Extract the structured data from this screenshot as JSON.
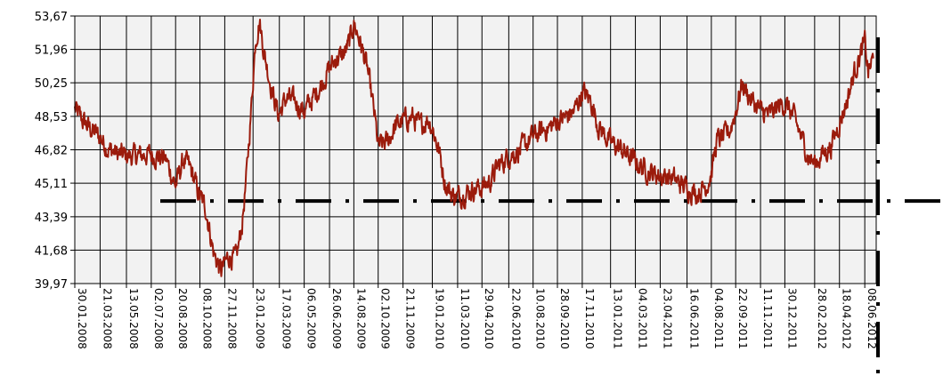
{
  "chart_data": {
    "type": "line",
    "title": "",
    "xlabel": "",
    "ylabel": "",
    "x_range": [
      "2008-01-30",
      "2012-07-01"
    ],
    "ylim": [
      39.97,
      53.67
    ],
    "yticks": [
      "53,67",
      "51,96",
      "50,25",
      "48,53",
      "46,82",
      "45,11",
      "43,39",
      "41,68",
      "39,97"
    ],
    "xticks": [
      "30.01.2008",
      "21.03.2008",
      "13.05.2008",
      "02.07.2008",
      "20.08.2008",
      "08.10.2008",
      "27.11.2008",
      "23.01.2009",
      "17.03.2009",
      "06.05.2009",
      "26.06.2009",
      "14.08.2009",
      "02.10.2009",
      "21.11.2009",
      "19.01.2010",
      "11.03.2010",
      "29.04.2010",
      "22.06.2010",
      "10.08.2010",
      "28.09.2010",
      "17.11.2010",
      "13.01.2011",
      "04.03.2011",
      "23.04.2011",
      "16.06.2011",
      "04.08.2011",
      "22.09.2011",
      "11.11.2011",
      "30.12.2011",
      "28.02.2012",
      "18.04.2012",
      "08.06.2012"
    ],
    "grid": true,
    "reference_line": {
      "value": 44.2,
      "style": "dash-dot"
    },
    "series": [
      {
        "color": "#9b1b0c",
        "points": [
          [
            "2008-01-30",
            48.9
          ],
          [
            "2008-02-15",
            48.3
          ],
          [
            "2008-03-01",
            47.9
          ],
          [
            "2008-03-20",
            47.5
          ],
          [
            "2008-04-05",
            46.9
          ],
          [
            "2008-04-25",
            46.6
          ],
          [
            "2008-05-15",
            46.5
          ],
          [
            "2008-06-05",
            46.5
          ],
          [
            "2008-06-25",
            46.6
          ],
          [
            "2008-07-15",
            46.5
          ],
          [
            "2008-08-01",
            46.3
          ],
          [
            "2008-08-20",
            45.0
          ],
          [
            "2008-09-05",
            46.3
          ],
          [
            "2008-09-20",
            45.8
          ],
          [
            "2008-10-05",
            44.6
          ],
          [
            "2008-10-20",
            43.8
          ],
          [
            "2008-11-05",
            41.5
          ],
          [
            "2008-11-20",
            40.6
          ],
          [
            "2008-12-05",
            41.4
          ],
          [
            "2008-12-20",
            41.2
          ],
          [
            "2009-01-01",
            43.0
          ],
          [
            "2009-01-10",
            45.5
          ],
          [
            "2009-01-20",
            49.2
          ],
          [
            "2009-01-28",
            52.5
          ],
          [
            "2009-02-05",
            53.4
          ],
          [
            "2009-02-15",
            51.7
          ],
          [
            "2009-03-01",
            50.0
          ],
          [
            "2009-03-15",
            48.6
          ],
          [
            "2009-04-01",
            49.5
          ],
          [
            "2009-04-20",
            49.2
          ],
          [
            "2009-05-06",
            48.8
          ],
          [
            "2009-05-25",
            49.5
          ],
          [
            "2009-06-10",
            50.2
          ],
          [
            "2009-06-26",
            51.0
          ],
          [
            "2009-07-10",
            51.5
          ],
          [
            "2009-07-25",
            51.7
          ],
          [
            "2009-08-05",
            52.3
          ],
          [
            "2009-08-14",
            53.3
          ],
          [
            "2009-08-25",
            52.5
          ],
          [
            "2009-09-10",
            51.0
          ],
          [
            "2009-09-25",
            48.5
          ],
          [
            "2009-10-02",
            47.0
          ],
          [
            "2009-10-20",
            47.2
          ],
          [
            "2009-11-05",
            48.0
          ],
          [
            "2009-11-21",
            48.3
          ],
          [
            "2009-12-10",
            48.5
          ],
          [
            "2009-12-25",
            48.0
          ],
          [
            "2010-01-10",
            48.4
          ],
          [
            "2010-01-19",
            48.0
          ],
          [
            "2010-02-01",
            46.8
          ],
          [
            "2010-02-15",
            45.0
          ],
          [
            "2010-03-01",
            44.5
          ],
          [
            "2010-03-11",
            44.4
          ],
          [
            "2010-03-25",
            44.6
          ],
          [
            "2010-04-10",
            44.8
          ],
          [
            "2010-04-29",
            44.9
          ],
          [
            "2010-05-15",
            45.2
          ],
          [
            "2010-06-01",
            46.0
          ],
          [
            "2010-06-22",
            46.5
          ],
          [
            "2010-07-15",
            46.8
          ],
          [
            "2010-08-10",
            47.5
          ],
          [
            "2010-08-30",
            47.8
          ],
          [
            "2010-09-15",
            48.0
          ],
          [
            "2010-09-28",
            48.3
          ],
          [
            "2010-10-15",
            48.5
          ],
          [
            "2010-11-01",
            48.8
          ],
          [
            "2010-11-17",
            49.8
          ],
          [
            "2010-12-05",
            49.3
          ],
          [
            "2010-12-20",
            48.0
          ],
          [
            "2011-01-13",
            47.2
          ],
          [
            "2011-02-05",
            46.8
          ],
          [
            "2011-03-04",
            46.2
          ],
          [
            "2011-03-25",
            45.8
          ],
          [
            "2011-04-10",
            45.6
          ],
          [
            "2011-04-23",
            45.5
          ],
          [
            "2011-05-15",
            45.4
          ],
          [
            "2011-06-01",
            45.1
          ],
          [
            "2011-06-16",
            44.9
          ],
          [
            "2011-07-05",
            44.6
          ],
          [
            "2011-07-25",
            45.0
          ],
          [
            "2011-08-04",
            45.6
          ],
          [
            "2011-08-15",
            47.3
          ],
          [
            "2011-08-30",
            47.5
          ],
          [
            "2011-09-10",
            47.8
          ],
          [
            "2011-09-22",
            48.8
          ],
          [
            "2011-10-05",
            50.2
          ],
          [
            "2011-10-20",
            49.5
          ],
          [
            "2011-11-11",
            48.8
          ],
          [
            "2011-11-30",
            48.6
          ],
          [
            "2011-12-15",
            49.0
          ],
          [
            "2011-12-30",
            49.2
          ],
          [
            "2012-01-15",
            48.6
          ],
          [
            "2012-02-01",
            47.5
          ],
          [
            "2012-02-15",
            46.5
          ],
          [
            "2012-02-28",
            46.1
          ],
          [
            "2012-03-15",
            46.6
          ],
          [
            "2012-04-01",
            47.0
          ],
          [
            "2012-04-18",
            48.2
          ],
          [
            "2012-05-05",
            49.5
          ],
          [
            "2012-05-20",
            51.0
          ],
          [
            "2012-06-01",
            51.8
          ],
          [
            "2012-06-08",
            52.3
          ],
          [
            "2012-06-15",
            50.8
          ],
          [
            "2012-06-25",
            51.5
          ]
        ]
      }
    ]
  }
}
